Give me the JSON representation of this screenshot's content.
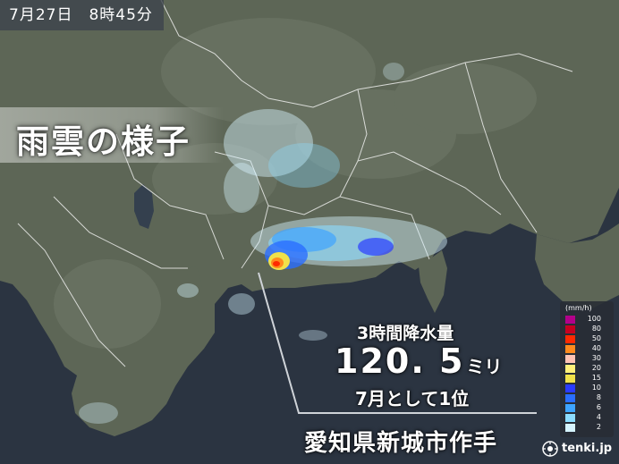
{
  "timestamp": "7月27日　8時45分",
  "title": "雨雲の様子",
  "info": {
    "period_label": "3時間降水量",
    "amount": "120. 5",
    "unit": "ミリ",
    "rank": "7月として1位"
  },
  "location": "愛知県新城市作手",
  "legend": {
    "unit": "(mm/h)",
    "items": [
      {
        "label": "100",
        "color": "#b3008a"
      },
      {
        "label": "80",
        "color": "#c80020"
      },
      {
        "label": "50",
        "color": "#ff2a00"
      },
      {
        "label": "40",
        "color": "#ff8a1e"
      },
      {
        "label": "30",
        "color": "#ffc3b4"
      },
      {
        "label": "20",
        "color": "#fff07a"
      },
      {
        "label": "15",
        "color": "#f0e14a"
      },
      {
        "label": "10",
        "color": "#2a3cff"
      },
      {
        "label": "8",
        "color": "#2a6eff"
      },
      {
        "label": "6",
        "color": "#3ea4ff"
      },
      {
        "label": "4",
        "color": "#8cdcff"
      },
      {
        "label": "2",
        "color": "#d6f4ff"
      }
    ]
  },
  "brand": {
    "name": "tenki.jp",
    "icon": "tenki-logo-icon"
  },
  "colors": {
    "sea": "#2b3441",
    "land": "#5e6657",
    "boundary": "#ffffff",
    "pointer_line": "#cfd3d8"
  }
}
